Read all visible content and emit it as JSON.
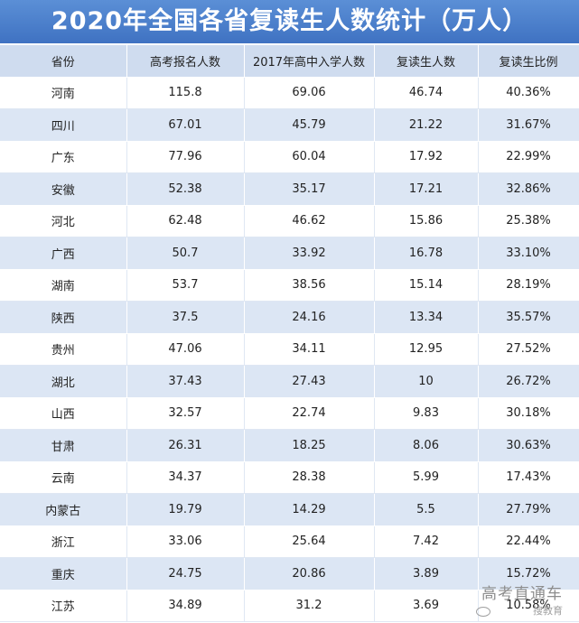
{
  "title": "2020年全国各省复读生人数统计（万人）",
  "columns": [
    "省份",
    "高考报名人数",
    "2017年高中入学人数",
    "复读生人数",
    "复读生比例"
  ],
  "rows": [
    [
      "河南",
      "115.8",
      "69.06",
      "46.74",
      "40.36%"
    ],
    [
      "四川",
      "67.01",
      "45.79",
      "21.22",
      "31.67%"
    ],
    [
      "广东",
      "77.96",
      "60.04",
      "17.92",
      "22.99%"
    ],
    [
      "安徽",
      "52.38",
      "35.17",
      "17.21",
      "32.86%"
    ],
    [
      "河北",
      "62.48",
      "46.62",
      "15.86",
      "25.38%"
    ],
    [
      "广西",
      "50.7",
      "33.92",
      "16.78",
      "33.10%"
    ],
    [
      "湖南",
      "53.7",
      "38.56",
      "15.14",
      "28.19%"
    ],
    [
      "陕西",
      "37.5",
      "24.16",
      "13.34",
      "35.57%"
    ],
    [
      "贵州",
      "47.06",
      "34.11",
      "12.95",
      "27.52%"
    ],
    [
      "湖北",
      "37.43",
      "27.43",
      "10",
      "26.72%"
    ],
    [
      "山西",
      "32.57",
      "22.74",
      "9.83",
      "30.18%"
    ],
    [
      "甘肃",
      "26.31",
      "18.25",
      "8.06",
      "30.63%"
    ],
    [
      "云南",
      "34.37",
      "28.38",
      "5.99",
      "17.43%"
    ],
    [
      "内蒙古",
      "19.79",
      "14.29",
      "5.5",
      "27.79%"
    ],
    [
      "浙江",
      "33.06",
      "25.64",
      "7.42",
      "22.44%"
    ],
    [
      "重庆",
      "24.75",
      "20.86",
      "3.89",
      "15.72%"
    ],
    [
      "江苏",
      "34.89",
      "31.2",
      "3.69",
      "10.58%"
    ]
  ],
  "watermark": {
    "text": "高考直通车",
    "sub": "搜教育"
  },
  "colors": {
    "title_bg": "#4a7fcb",
    "header_bg": "#cfdcef",
    "stripe": "#dce6f4"
  }
}
